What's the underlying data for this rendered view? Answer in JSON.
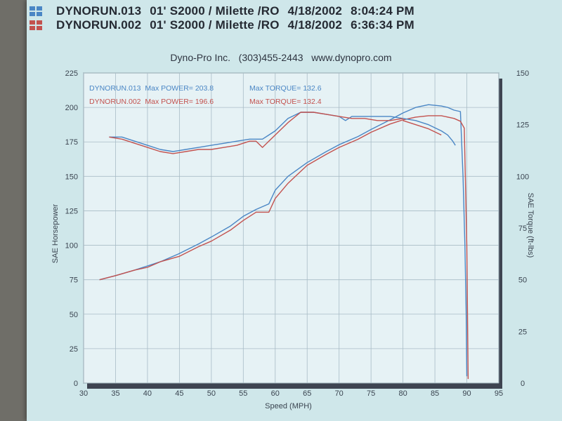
{
  "header": {
    "runs": [
      {
        "name": "DYNORUN.013",
        "vehicle": "01' S2000 / Milette /RO",
        "date": "4/18/2002",
        "time": "8:04:24 PM",
        "color": "#4a86c5"
      },
      {
        "name": "DYNORUN.002",
        "vehicle": "01' S2000 / Milette /RO",
        "date": "4/18/2002",
        "time": "6:36:34 PM",
        "color": "#c3524f"
      }
    ],
    "company": "Dyno-Pro Inc.   (303)455-2443   www.dynopro.com"
  },
  "chart_data": {
    "type": "line",
    "xlabel": "Speed (MPH)",
    "ylabel_left": "SAE Horsepower",
    "ylabel_right": "SAE Torque (ft-lbs)",
    "xlim": [
      30,
      95
    ],
    "ylim_left": [
      0,
      225
    ],
    "ylim_right": [
      0,
      150
    ],
    "x_ticks": [
      30,
      35,
      40,
      45,
      50,
      55,
      60,
      65,
      70,
      75,
      80,
      85,
      90,
      95
    ],
    "y_ticks_left": [
      0,
      25,
      50,
      75,
      100,
      125,
      150,
      175,
      200,
      225
    ],
    "y_ticks_right": [
      0,
      25,
      50,
      75,
      100,
      125,
      150
    ],
    "grid": true,
    "annotations": [
      {
        "label": "DYNORUN.013  Max POWER=",
        "value": "203.8",
        "color": "#4a86c5"
      },
      {
        "label": "Max TORQUE=",
        "value": "132.6",
        "color": "#4a86c5"
      },
      {
        "label": "DYNORUN.002  Max POWER=",
        "value": "196.6",
        "color": "#c3524f"
      },
      {
        "label": "Max TORQUE=",
        "value": "132.4",
        "color": "#c3524f"
      }
    ],
    "series": [
      {
        "name": "DYNORUN.013",
        "metric": "power",
        "axis": "left",
        "color": "#4a86c5",
        "x": [
          32.5,
          35,
          38,
          40,
          42,
          45,
          48,
          50,
          53,
          55,
          57,
          59,
          60,
          62,
          65,
          68,
          70,
          73,
          75,
          78,
          80,
          82,
          84,
          86,
          87,
          88,
          89,
          89.4,
          89.7,
          89.9,
          90
        ],
        "y": [
          75,
          78,
          82,
          85,
          88,
          94,
          101,
          106,
          114,
          121,
          126,
          130,
          140,
          150,
          160,
          168,
          173,
          179,
          184,
          191,
          196,
          200,
          202,
          201,
          200,
          198,
          197,
          150,
          100,
          50,
          5
        ]
      },
      {
        "name": "DYNORUN.002",
        "metric": "power",
        "axis": "left",
        "color": "#c3524f",
        "x": [
          32.5,
          35,
          38,
          40,
          42,
          45,
          48,
          50,
          53,
          55,
          57,
          59,
          60,
          62,
          65,
          68,
          70,
          73,
          75,
          78,
          80,
          82,
          84,
          86,
          88,
          89,
          89.6,
          90,
          90.2
        ],
        "y": [
          75,
          78,
          82,
          84,
          88,
          92,
          99,
          103,
          111,
          118,
          124,
          124,
          134,
          145,
          158,
          166,
          171,
          177,
          182,
          188,
          191,
          193,
          194,
          194,
          192,
          190,
          185,
          100,
          3
        ]
      },
      {
        "name": "DYNORUN.013",
        "metric": "torque",
        "axis": "right",
        "color": "#4a86c5",
        "x": [
          34,
          36,
          38,
          40,
          42,
          44,
          46,
          48,
          50,
          52,
          54,
          56,
          58,
          60,
          62,
          64,
          66,
          68,
          70,
          71,
          72,
          74,
          76,
          78,
          80,
          82,
          84,
          86,
          87,
          87.8,
          88.2
        ],
        "y": [
          119,
          119,
          117,
          115,
          113,
          112,
          113,
          114,
          115,
          116,
          117,
          118,
          118,
          122,
          128,
          131,
          131,
          130,
          129,
          127,
          129,
          129,
          129,
          129,
          128,
          127,
          125,
          122,
          120,
          117,
          115
        ]
      },
      {
        "name": "DYNORUN.002",
        "metric": "torque",
        "axis": "right",
        "color": "#c3524f",
        "x": [
          34,
          36,
          38,
          40,
          42,
          44,
          46,
          48,
          50,
          52,
          54,
          56,
          57,
          58,
          60,
          62,
          64,
          66,
          68,
          70,
          72,
          74,
          76,
          78,
          80
        ],
        "y": [
          119,
          118,
          116,
          114,
          112,
          111,
          112,
          113,
          113,
          114,
          115,
          117,
          117,
          114,
          120,
          126,
          131,
          131,
          130,
          129,
          128,
          128,
          127,
          127,
          128
        ]
      },
      {
        "name": "DYNORUN.002",
        "metric": "torque",
        "axis": "right",
        "color": "#c3524f",
        "x": [
          80,
          82,
          84,
          86
        ],
        "y": [
          127,
          125,
          123,
          120
        ]
      }
    ]
  }
}
